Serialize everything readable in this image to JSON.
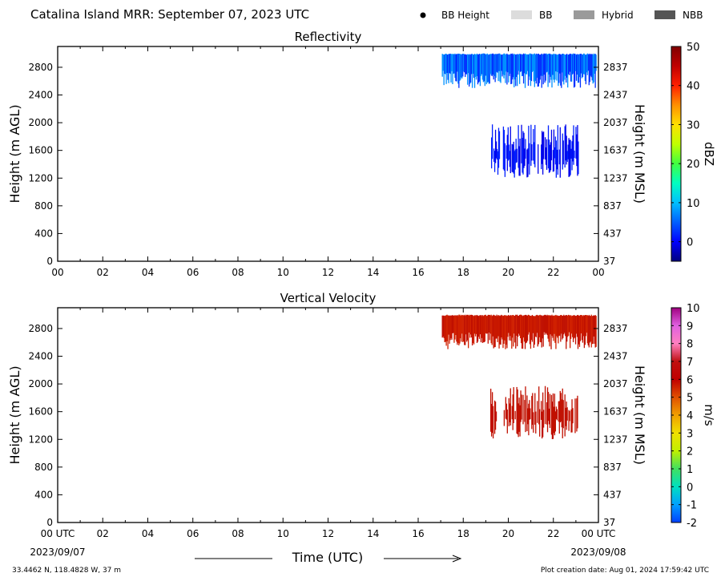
{
  "header": {
    "title": "Catalina Island MRR:  September 07, 2023 UTC",
    "legend": [
      {
        "label": "BB Height",
        "kind": "dot",
        "color": "#000000"
      },
      {
        "label": "BB",
        "kind": "swatch",
        "color": "#dcdcdc"
      },
      {
        "label": "Hybrid",
        "kind": "swatch",
        "color": "#9a9a9a"
      },
      {
        "label": "NBB",
        "kind": "swatch",
        "color": "#555555"
      }
    ]
  },
  "chart_data": [
    {
      "type": "heatmap",
      "title": "Reflectivity",
      "ylabel": "Height (m AGL)",
      "y2label": "Height (m MSL)",
      "xlim": [
        0,
        24
      ],
      "ylim": [
        0,
        3100
      ],
      "x_ticks": [
        "00",
        "02",
        "04",
        "06",
        "08",
        "10",
        "12",
        "14",
        "16",
        "18",
        "20",
        "22",
        "00"
      ],
      "y_ticks": [
        0,
        400,
        800,
        1200,
        1600,
        2000,
        2400,
        2800
      ],
      "y2_ticks": [
        "37",
        "437",
        "837",
        "1237",
        "1637",
        "2037",
        "2437",
        "2837"
      ],
      "colorbar": {
        "label": "dBZ",
        "range": [
          -5,
          50
        ],
        "ticks": [
          0,
          10,
          20,
          30,
          40,
          50
        ],
        "colors": [
          "#000080",
          "#0000ff",
          "#0060ff",
          "#00c0ff",
          "#00ffc0",
          "#40ff40",
          "#c0ff00",
          "#ffe000",
          "#ff9000",
          "#ff2000",
          "#c00000",
          "#800000"
        ]
      },
      "echoes": [
        {
          "name": "upper layer",
          "t_start": 17.05,
          "t_end": 23.9,
          "base_min": 2500,
          "base_max": 2750,
          "top": 3000,
          "color_core": "#0030ff",
          "color_edge": "#0090ff"
        },
        {
          "name": "lower layer",
          "t_start": 19.2,
          "t_end": 23.1,
          "base_min": 1200,
          "base_max": 1500,
          "top": 1980,
          "color_core": "#0000e8",
          "color_edge": "#0020ff"
        }
      ]
    },
    {
      "type": "heatmap",
      "title": "Vertical Velocity",
      "ylabel": "Height (m AGL)",
      "y2label": "Height (m MSL)",
      "xlim": [
        0,
        24
      ],
      "ylim": [
        0,
        3100
      ],
      "x_ticks": [
        "00 UTC",
        "02",
        "04",
        "06",
        "08",
        "10",
        "12",
        "14",
        "16",
        "18",
        "20",
        "22",
        "00 UTC"
      ],
      "y_ticks": [
        0,
        400,
        800,
        1200,
        1600,
        2000,
        2400,
        2800
      ],
      "y2_ticks": [
        "37",
        "437",
        "837",
        "1237",
        "1637",
        "2037",
        "2437",
        "2837"
      ],
      "colorbar": {
        "label": "m/s",
        "range": [
          -2,
          10
        ],
        "ticks": [
          -2,
          -1,
          0,
          1,
          2,
          3,
          4,
          5,
          6,
          7,
          8,
          9,
          10
        ],
        "colors": [
          "#0040ff",
          "#00a0ff",
          "#00e0c0",
          "#40e060",
          "#c0f000",
          "#f0e000",
          "#f0a000",
          "#e05000",
          "#c00000",
          "#c01010",
          "#ff80c0",
          "#e060e0",
          "#a00080"
        ]
      },
      "echoes": [
        {
          "name": "upper layer",
          "t_start": 17.05,
          "t_end": 23.9,
          "base_min": 2500,
          "base_max": 2750,
          "top": 3000,
          "color_core": "#c01000",
          "color_edge": "#d02000"
        },
        {
          "name": "lower layer",
          "t_start": 19.2,
          "t_end": 23.1,
          "base_min": 1200,
          "base_max": 1500,
          "top": 1980,
          "color_core": "#c01000",
          "color_edge": "#c01000"
        }
      ]
    }
  ],
  "footer": {
    "start_date": "2023/09/07",
    "end_date": "2023/09/08",
    "xlabel": "Time (UTC)",
    "location": "33.4462 N, 118.4828 W, 37 m",
    "creation_date": "Plot creation date: Aug 01, 2024 17:59:42 UTC"
  }
}
